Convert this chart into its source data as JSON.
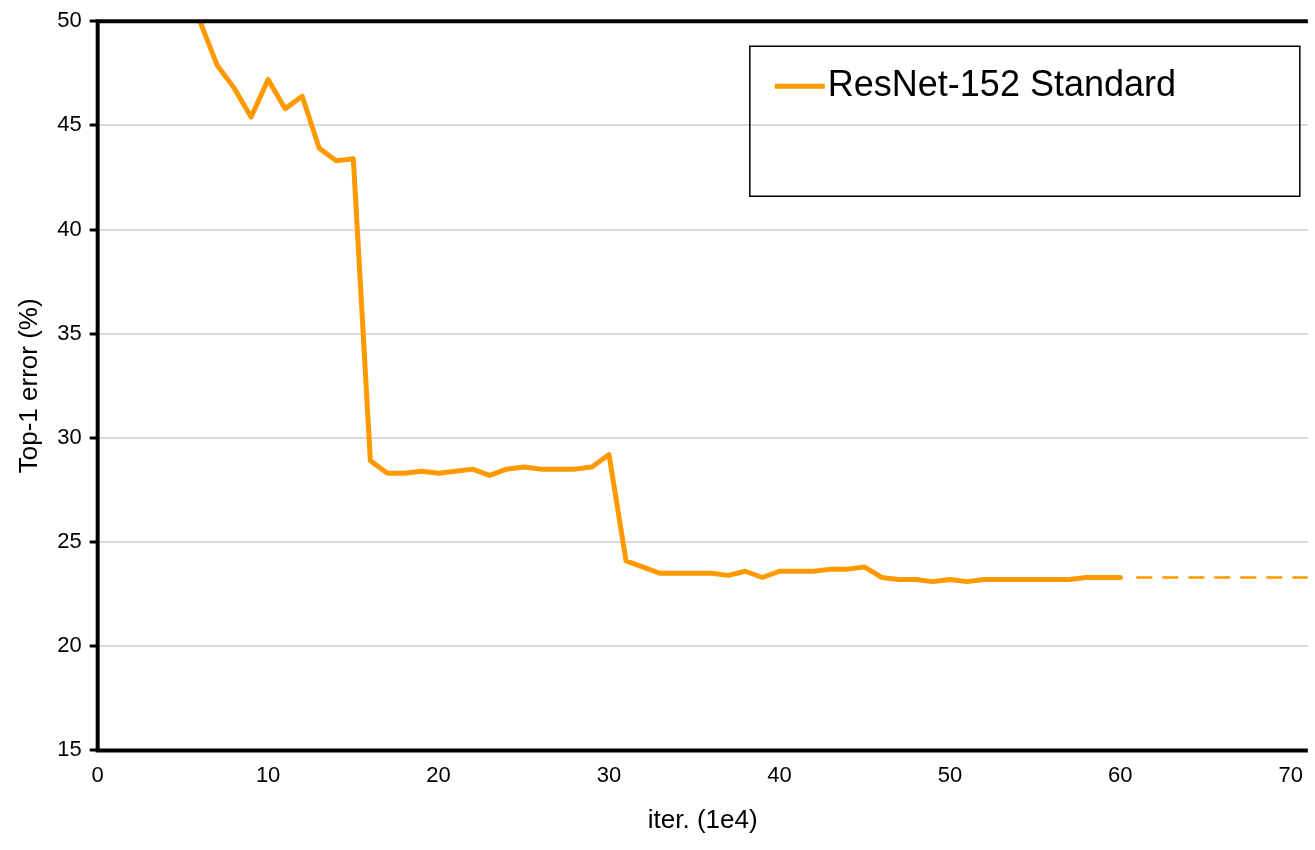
{
  "chart_data": {
    "type": "line",
    "xlabel": "iter. (1e4)",
    "ylabel": "Top-1 error (%)",
    "xlim": [
      0,
      71
    ],
    "xticks": [
      0,
      10,
      20,
      30,
      40,
      50,
      60,
      70
    ],
    "ylim": [
      15,
      50
    ],
    "yticks": [
      15,
      20,
      25,
      30,
      35,
      40,
      45,
      50
    ],
    "grid": "y",
    "legend": "top right",
    "marker": "none",
    "series": [
      {
        "name": "ResNet-152 Standard",
        "color": "#ff9900",
        "line_style": "solid",
        "x": [
          6,
          7,
          8,
          9,
          10,
          11,
          12,
          13,
          14,
          15,
          16,
          17,
          18,
          19,
          20,
          21,
          22,
          23,
          24,
          25,
          26,
          27,
          28,
          29,
          30,
          31,
          32,
          33,
          34,
          35,
          36,
          37,
          38,
          39,
          40,
          41,
          42,
          43,
          44,
          45,
          46,
          47,
          48,
          49,
          50,
          51,
          52,
          53,
          54,
          55,
          56,
          57,
          58,
          59,
          60
        ],
        "values": [
          50,
          47.9,
          46.8,
          45.4,
          47.2,
          45.8,
          46.4,
          43.9,
          43.3,
          43.4,
          28.9,
          28.3,
          28.3,
          28.4,
          28.3,
          28.4,
          28.5,
          28.2,
          28.5,
          28.6,
          28.5,
          28.5,
          28.5,
          28.6,
          29.2,
          24.1,
          23.8,
          23.5,
          23.5,
          23.5,
          23.5,
          23.4,
          23.6,
          23.3,
          23.6,
          23.6,
          23.6,
          23.7,
          23.7,
          23.8,
          23.3,
          23.2,
          23.2,
          23.1,
          23.2,
          23.1,
          23.2,
          23.2,
          23.2,
          23.2,
          23.2,
          23.2,
          23.3,
          23.3,
          23.3
        ]
      },
      {
        "color": "#ff9900",
        "line_style": "dashed",
        "x": [
          61,
          71
        ],
        "values": [
          23.3,
          23.3
        ]
      }
    ]
  }
}
